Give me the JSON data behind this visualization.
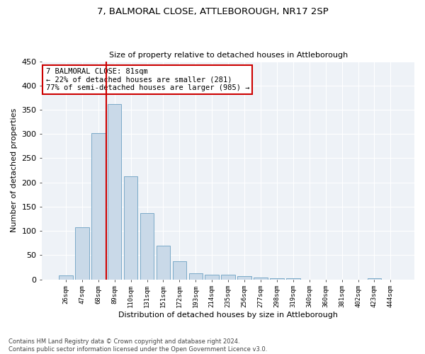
{
  "title1": "7, BALMORAL CLOSE, ATTLEBOROUGH, NR17 2SP",
  "title2": "Size of property relative to detached houses in Attleborough",
  "xlabel": "Distribution of detached houses by size in Attleborough",
  "ylabel": "Number of detached properties",
  "bar_color": "#c9d9e8",
  "bar_edge_color": "#7aaac8",
  "categories": [
    "26sqm",
    "47sqm",
    "68sqm",
    "89sqm",
    "110sqm",
    "131sqm",
    "151sqm",
    "172sqm",
    "193sqm",
    "214sqm",
    "235sqm",
    "256sqm",
    "277sqm",
    "298sqm",
    "319sqm",
    "340sqm",
    "360sqm",
    "381sqm",
    "402sqm",
    "423sqm",
    "444sqm"
  ],
  "values": [
    8,
    108,
    302,
    362,
    212,
    136,
    69,
    38,
    13,
    10,
    10,
    6,
    4,
    2,
    2,
    0,
    0,
    0,
    0,
    3,
    0
  ],
  "ylim": [
    0,
    450
  ],
  "yticks": [
    0,
    50,
    100,
    150,
    200,
    250,
    300,
    350,
    400,
    450
  ],
  "vline_color": "#cc0000",
  "annotation_line1": "7 BALMORAL CLOSE: 81sqm",
  "annotation_line2": "← 22% of detached houses are smaller (281)",
  "annotation_line3": "77% of semi-detached houses are larger (985) →",
  "annotation_box_color": "#ffffff",
  "annotation_box_edge": "#cc0000",
  "footnote": "Contains HM Land Registry data © Crown copyright and database right 2024.\nContains public sector information licensed under the Open Government Licence v3.0.",
  "background_color": "#eef2f7"
}
